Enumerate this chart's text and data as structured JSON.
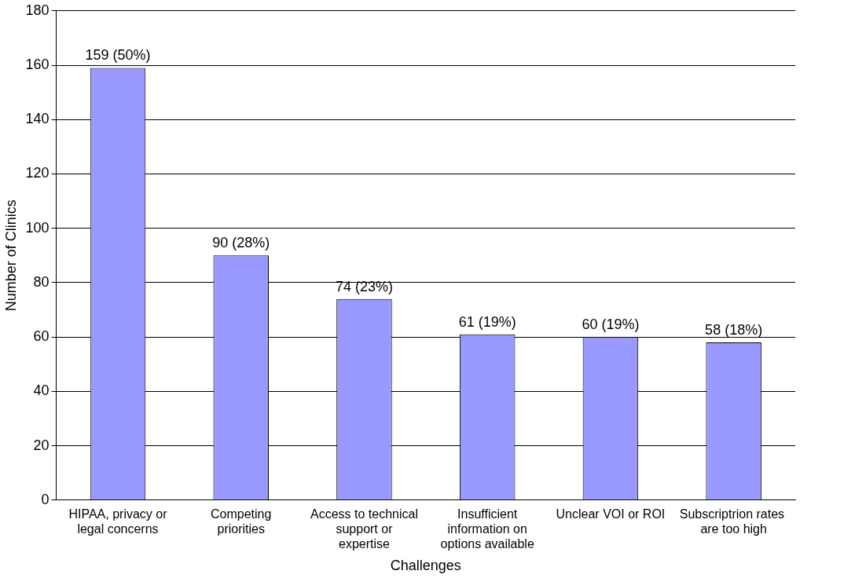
{
  "chart_data": {
    "type": "bar",
    "xlabel": "Challenges",
    "ylabel": "Number of Clinics",
    "categories": [
      "HIPAA, privacy or legal concerns",
      "Competing priorities",
      "Access to technical support or expertise",
      "Insufficient information on options available",
      "Unclear VOI or ROI",
      "Subscriptrion rates  are too high"
    ],
    "values": [
      159,
      90,
      74,
      61,
      60,
      58
    ],
    "value_labels": [
      "159 (50%)",
      "90 (28%)",
      "74 (23%)",
      "61 (19%)",
      "60 (19%)",
      "58 (18%)"
    ],
    "color": "#9999ff",
    "ylim": [
      0,
      180
    ],
    "yticks": [
      0,
      20,
      40,
      60,
      80,
      100,
      120,
      140,
      160,
      180
    ],
    "grid": "y",
    "legend": false
  }
}
